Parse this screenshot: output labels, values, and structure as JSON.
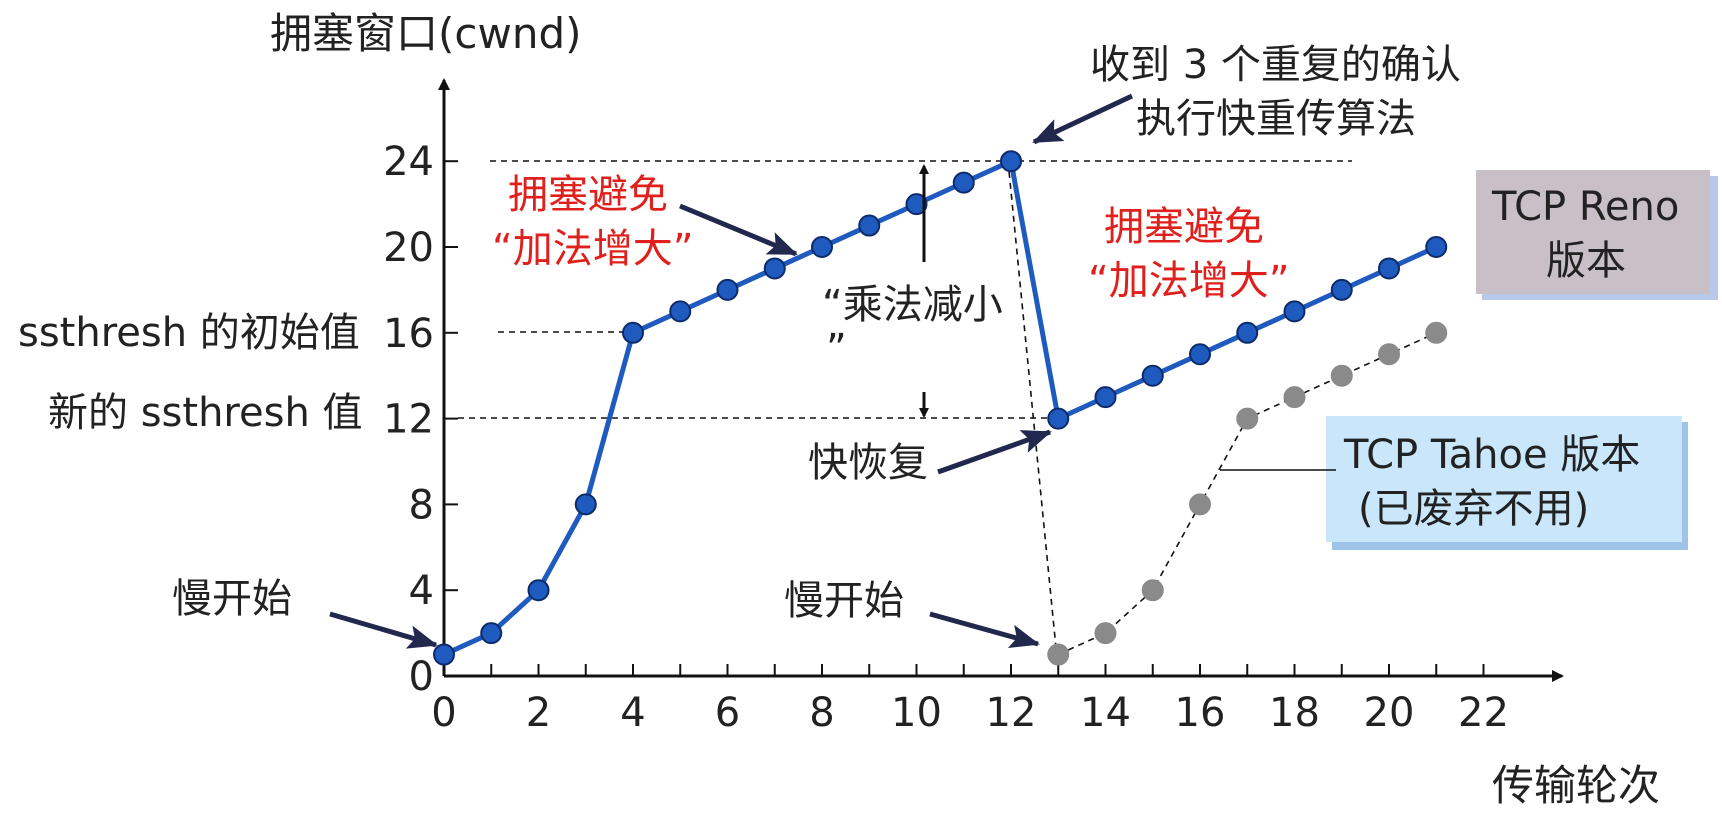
{
  "chart_data": {
    "type": "line",
    "ylabel": "拥塞窗口(cwnd)",
    "xlabel": "传输轮次",
    "xlim": [
      0,
      23
    ],
    "ylim": [
      0,
      27
    ],
    "x_ticks": [
      0,
      2,
      4,
      6,
      8,
      10,
      12,
      14,
      16,
      18,
      20,
      22
    ],
    "y_ticks": [
      0,
      4,
      8,
      12,
      16,
      20,
      24
    ],
    "series": [
      {
        "name": "TCP Reno 版本",
        "color": "#1f5bbf",
        "x": [
          0,
          1,
          2,
          3,
          4,
          5,
          6,
          7,
          8,
          9,
          10,
          11,
          12,
          13,
          14,
          15,
          16,
          17,
          18,
          19,
          20,
          21
        ],
        "y": [
          1,
          2,
          4,
          8,
          16,
          17,
          18,
          19,
          20,
          21,
          22,
          23,
          24,
          12,
          13,
          14,
          15,
          16,
          17,
          18,
          19,
          20
        ]
      },
      {
        "name": "TCP Tahoe 版本",
        "color": "#8a8a8a",
        "x": [
          13,
          14,
          15,
          16,
          17,
          18,
          19,
          20,
          21
        ],
        "y": [
          1,
          2,
          4,
          8,
          12,
          13,
          14,
          15,
          16
        ]
      }
    ],
    "annotations": {
      "ssthresh_initial": "ssthresh 的初始值",
      "ssthresh_new": "新的 ssthresh 值",
      "slow_start_1": "慢开始",
      "slow_start_2": "慢开始",
      "cong_avoid_1_line1": "拥塞避免",
      "cong_avoid_1_line2": "“加法增大”",
      "cong_avoid_2_line1": "拥塞避免",
      "cong_avoid_2_line2": "“加法增大”",
      "mult_decrease_line1": "“乘法减小",
      "mult_decrease_line2": "”",
      "three_dup_line1": "收到 3 个重复的确认",
      "three_dup_line2": "执行快重传算法",
      "fast_recovery": "快恢复",
      "reno_line1": "TCP Reno",
      "reno_line2": "版本",
      "tahoe_line1": "TCP Tahoe 版本",
      "tahoe_line2": "(已废弃不用)"
    },
    "colors": {
      "reno_box": "#c9bfc6",
      "tahoe_box": "#c9e6fb",
      "annotation_red": "#e0201c",
      "arrow": "#22284d"
    }
  }
}
